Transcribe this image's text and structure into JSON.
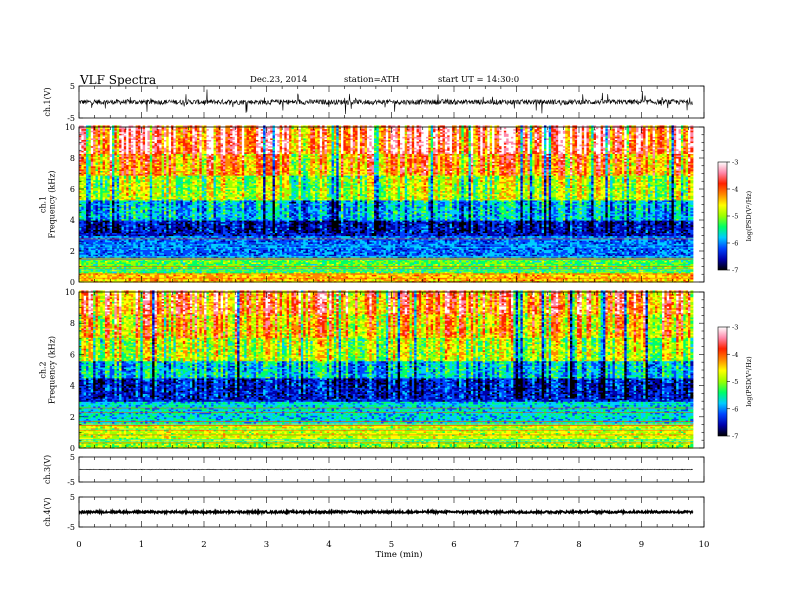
{
  "header": {
    "title": "VLF  Spectra",
    "date": "Dec.23, 2014",
    "station": "station=ATH",
    "start": "start  UT  =   14:30:0"
  },
  "chart_data": [
    {
      "id": "ch1",
      "type": "line",
      "ylabel": "ch.1(V)",
      "ylim": [
        -5,
        5
      ],
      "yticks": [
        "5",
        "-5"
      ],
      "baseline": 0,
      "amplitude": 1.6,
      "color": "#000000"
    },
    {
      "id": "ch1_spec",
      "type": "heatmap",
      "ylabel": "ch.1\nFrequency  (kHz)",
      "ylim": [
        0,
        10
      ],
      "yticks": [
        "0",
        "2",
        "4",
        "6",
        "8",
        "10"
      ],
      "colorbar": {
        "label": "log(PSD(V²/Hz)",
        "range": [
          -7,
          -3
        ],
        "ticks": [
          "-3",
          "-4",
          "-5",
          "-6",
          "-7"
        ],
        "colors": [
          "#000000",
          "#0000aa",
          "#0044ff",
          "#00ccff",
          "#00ff66",
          "#99ff00",
          "#ffff00",
          "#ff8800",
          "#ff2200",
          "#ff88aa",
          "#ffffff"
        ]
      },
      "bands": [
        {
          "f0": 0,
          "f1": 0.6,
          "level": -4.4
        },
        {
          "f0": 0.6,
          "f1": 1.6,
          "level": -5.2
        },
        {
          "f0": 1.6,
          "f1": 3.0,
          "level": -6.1
        },
        {
          "f0": 3.0,
          "f1": 4.0,
          "level": -6.5
        },
        {
          "f0": 4.0,
          "f1": 5.2,
          "level": -5.8
        },
        {
          "f0": 5.2,
          "f1": 6.8,
          "level": -4.9
        },
        {
          "f0": 6.8,
          "f1": 8.2,
          "level": -4.2
        },
        {
          "f0": 8.2,
          "f1": 10.0,
          "level": -3.6
        }
      ]
    },
    {
      "id": "ch2_spec",
      "type": "heatmap",
      "ylabel": "ch.2\nFrequency  (kHz)",
      "ylim": [
        0,
        10
      ],
      "yticks": [
        "0",
        "2",
        "4",
        "6",
        "8",
        "10"
      ],
      "colorbar": {
        "label": "log(PSD(V²/Hz)",
        "range": [
          -7,
          -3
        ],
        "ticks": [
          "-3",
          "-4",
          "-5",
          "-6",
          "-7"
        ],
        "colors": [
          "#000000",
          "#0000aa",
          "#0044ff",
          "#00ccff",
          "#00ff66",
          "#99ff00",
          "#ffff00",
          "#ff8800",
          "#ff2200",
          "#ff88aa",
          "#ffffff"
        ]
      },
      "bands": [
        {
          "f0": 0,
          "f1": 0.6,
          "level": -5.0
        },
        {
          "f0": 0.6,
          "f1": 1.6,
          "level": -4.8
        },
        {
          "f0": 1.6,
          "f1": 3.0,
          "level": -5.7
        },
        {
          "f0": 3.0,
          "f1": 4.5,
          "level": -6.4
        },
        {
          "f0": 4.5,
          "f1": 5.5,
          "level": -5.7
        },
        {
          "f0": 5.5,
          "f1": 7.0,
          "level": -4.8
        },
        {
          "f0": 7.0,
          "f1": 8.5,
          "level": -4.3
        },
        {
          "f0": 8.5,
          "f1": 10.0,
          "level": -3.9
        }
      ]
    },
    {
      "id": "ch3",
      "type": "line",
      "ylabel": "ch.3(V)",
      "ylim": [
        -5,
        5
      ],
      "yticks": [
        "5",
        "-5"
      ],
      "baseline": 0,
      "amplitude": 0.25,
      "color": "#000000"
    },
    {
      "id": "ch4",
      "type": "line",
      "ylabel": "ch.4(V)",
      "ylim": [
        -5,
        5
      ],
      "yticks": [
        "5",
        "-5"
      ],
      "baseline": 0,
      "amplitude": 0.7,
      "color": "#000000"
    }
  ],
  "xaxis": {
    "label": "Time  (min)",
    "range": [
      0,
      10
    ],
    "ticks": [
      "0",
      "1",
      "2",
      "3",
      "4",
      "5",
      "6",
      "7",
      "8",
      "9",
      "10"
    ],
    "data_end": 9.82
  }
}
